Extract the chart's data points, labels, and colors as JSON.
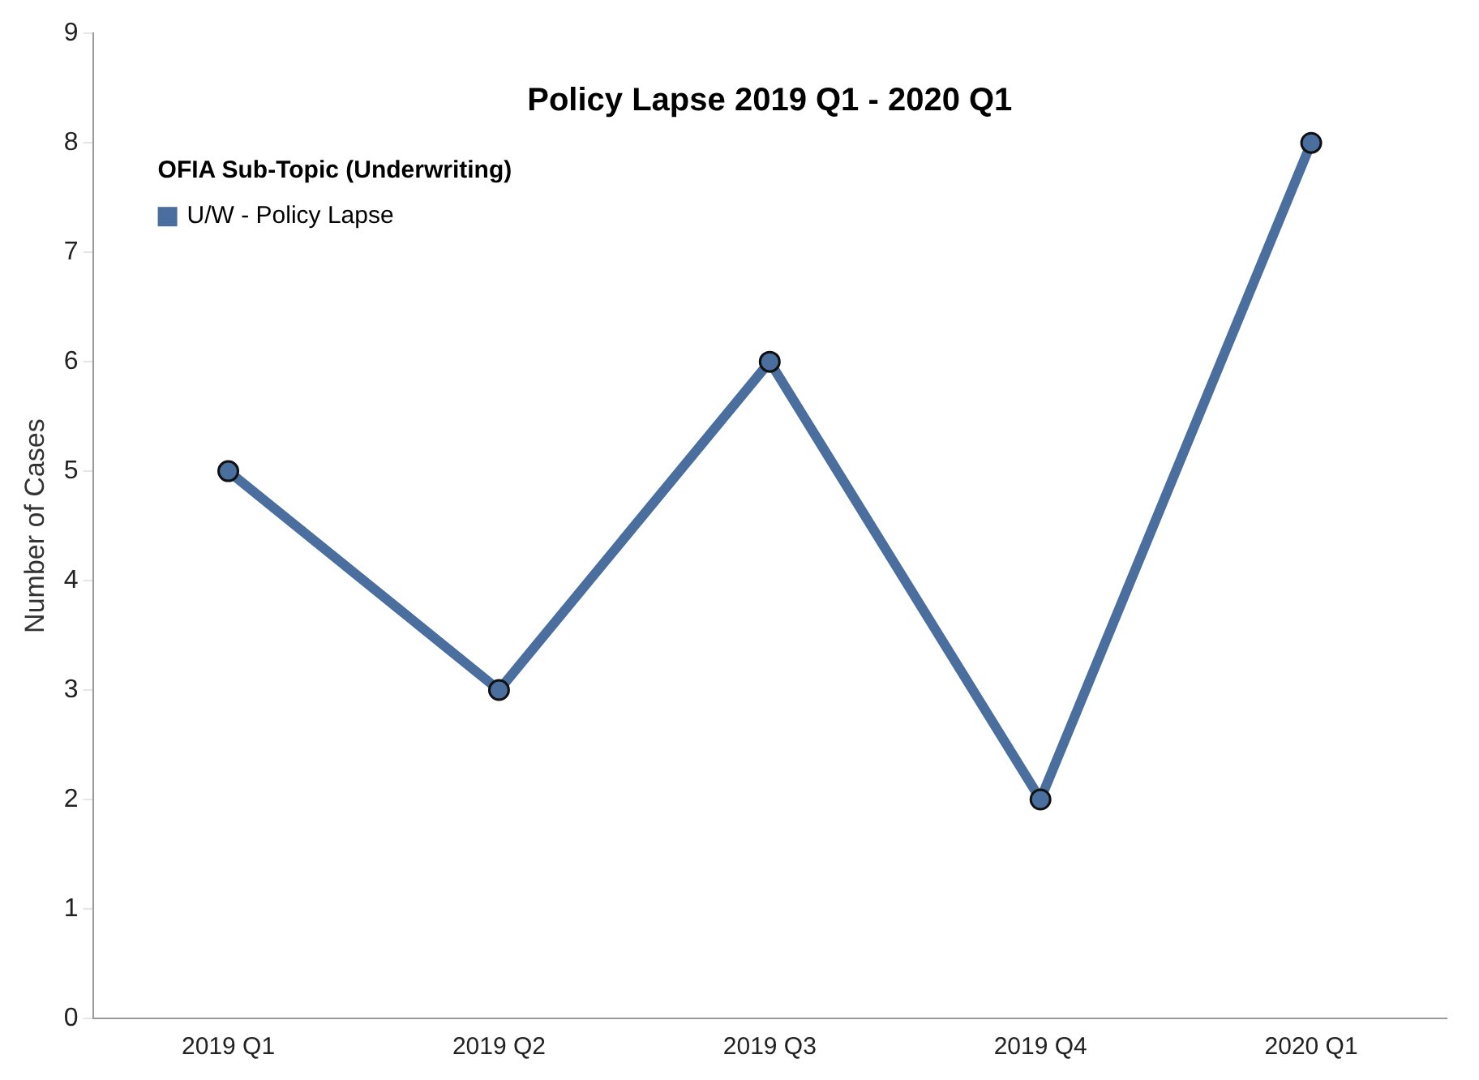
{
  "chart_data": {
    "type": "line",
    "title": "Policy Lapse 2019 Q1 - 2020 Q1",
    "ylabel": "Number of Cases",
    "legend_title": "OFIA Sub-Topic (Underwriting)",
    "categories": [
      "2019 Q1",
      "2019 Q2",
      "2019 Q3",
      "2019 Q4",
      "2020 Q1"
    ],
    "series": [
      {
        "name": "U/W - Policy Lapse",
        "color": "#4a6f9f",
        "values": [
          5,
          3,
          6,
          2,
          8
        ]
      }
    ],
    "ylim": [
      0,
      9
    ],
    "yticks": [
      0,
      1,
      2,
      3,
      4,
      5,
      6,
      7,
      8,
      9
    ],
    "grid": false,
    "legend": "top left",
    "marker": "circle",
    "line_style": "solid"
  }
}
